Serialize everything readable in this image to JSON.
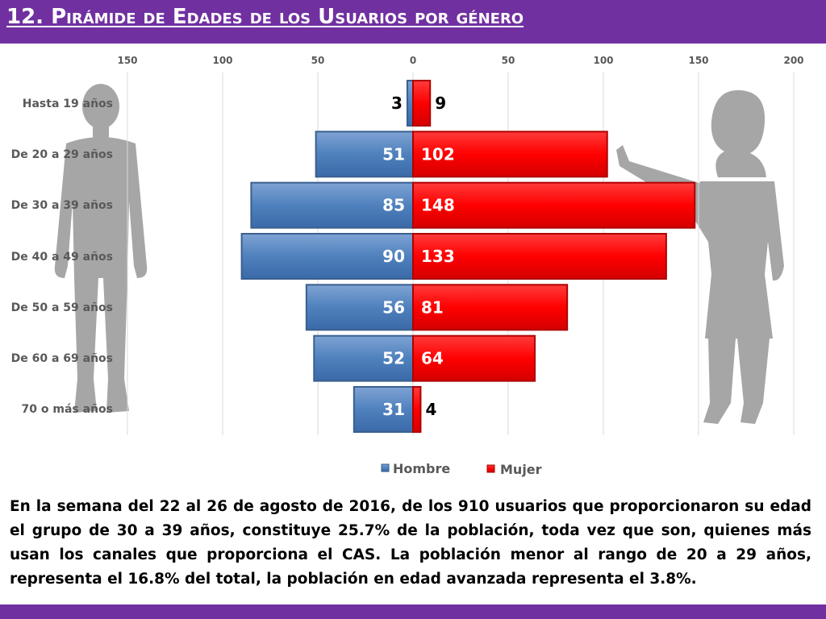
{
  "slide": {
    "title": "12. Pirámide de Edades de los Usuarios por género",
    "paragraph": "En la semana del 22 al 26 de agosto de 2016, de los 910 usuarios  que proporcionaron su edad el grupo de 30 a 39 años,  constituye 25.7% de la población, toda vez que son, quienes más usan los canales que proporciona el CAS. La población menor al rango de 20 a 29 años, representa el 16.8% del total, la población en edad avanzada representa el 3.8%.",
    "colors": {
      "title_bar": "#7030a0",
      "bottom_bar": "#7030a0",
      "hombre": "#4f81bd",
      "mujer": "#ff0000",
      "silhouette": "#a6a6a6"
    },
    "decorations": [
      "man-silhouette",
      "woman-silhouette"
    ]
  },
  "chart_data": {
    "type": "bar",
    "orientation": "horizontal-population-pyramid",
    "categories": [
      "Hasta 19 años",
      "De 20 a 29 años",
      "De 30 a 39 años",
      "De 40 a 49 años",
      "De 50 a 59 años",
      "De 60 a 69 años",
      "70 o más años"
    ],
    "series": [
      {
        "name": "Hombre",
        "values": [
          3,
          51,
          85,
          90,
          56,
          52,
          31
        ],
        "color": "#4f81bd",
        "side": "left"
      },
      {
        "name": "Mujer",
        "values": [
          9,
          102,
          148,
          133,
          81,
          64,
          4
        ],
        "color": "#ff0000",
        "side": "right"
      }
    ],
    "x_ticks": [
      "150",
      "100",
      "50",
      "0",
      "50",
      "100",
      "150",
      "200"
    ],
    "xlim": [
      -150,
      200
    ],
    "grid": true,
    "legend": "bottom"
  }
}
